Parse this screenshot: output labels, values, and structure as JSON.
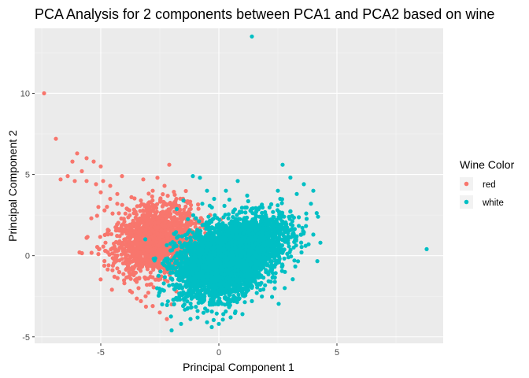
{
  "chart_data": {
    "type": "scatter",
    "title": "PCA Analysis for 2 components between PCA1 and PCA2 based on wine",
    "xlabel": "Principal Component 1",
    "ylabel": "Principal Component 2",
    "xlim": [
      -7.8,
      9.5
    ],
    "ylim": [
      -5.4,
      14.0
    ],
    "x_ticks": [
      -5,
      0,
      5
    ],
    "y_ticks": [
      -5,
      0,
      5,
      10
    ],
    "x_tick_labels": [
      "-5",
      "0",
      "5"
    ],
    "y_tick_labels": [
      "-5",
      "0",
      "5",
      "10"
    ],
    "grid": true,
    "legend": {
      "title": "Wine Color",
      "placement": "right",
      "entries": [
        "red",
        "white"
      ]
    },
    "colors": {
      "red": "#f8766d",
      "white": "#00bfc4",
      "panel": "#ebebeb"
    },
    "series": [
      {
        "name": "red",
        "color": "#f8766d",
        "points": [
          [
            -7.4,
            10.0
          ],
          [
            -6.9,
            7.2
          ],
          [
            -6.0,
            6.3
          ],
          [
            -5.6,
            6.0
          ],
          [
            -5.3,
            5.8
          ],
          [
            -5.0,
            5.5
          ],
          [
            -6.2,
            5.8
          ],
          [
            -5.8,
            5.2
          ],
          [
            -6.1,
            4.6
          ],
          [
            -6.4,
            4.9
          ],
          [
            -5.2,
            4.4
          ],
          [
            -5.6,
            4.6
          ],
          [
            -4.6,
            4.3
          ],
          [
            -4.9,
            4.6
          ],
          [
            -4.3,
            3.8
          ],
          [
            -4.1,
            4.9
          ],
          [
            -3.7,
            3.6
          ],
          [
            -3.3,
            3.4
          ],
          [
            -3.9,
            2.9
          ],
          [
            -4.5,
            2.6
          ],
          [
            -5.1,
            3.0
          ],
          [
            -5.4,
            2.3
          ],
          [
            -4.0,
            2.1
          ],
          [
            -3.5,
            1.9
          ],
          [
            -4.7,
            1.6
          ],
          [
            -4.2,
            1.2
          ],
          [
            -5.9,
            0.2
          ],
          [
            -5.1,
            0.1
          ],
          [
            -4.4,
            -0.4
          ],
          [
            -3.9,
            -0.8
          ],
          [
            -3.6,
            -1.2
          ],
          [
            -4.0,
            -1.7
          ],
          [
            -3.4,
            -2.0
          ],
          [
            -3.1,
            -2.5
          ],
          [
            -2.8,
            -3.1
          ],
          [
            -3.3,
            -2.8
          ],
          [
            -2.5,
            -3.5
          ],
          [
            -2.2,
            -3.9
          ],
          [
            -2.0,
            -3.0
          ],
          [
            -1.8,
            -2.2
          ],
          [
            -2.1,
            5.6
          ],
          [
            -2.3,
            4.3
          ],
          [
            -2.8,
            4.0
          ],
          [
            -1.8,
            3.5
          ],
          [
            -1.4,
            2.6
          ],
          [
            -1.2,
            1.9
          ],
          [
            -1.0,
            1.4
          ],
          [
            -1.5,
            0.4
          ],
          [
            -1.3,
            -0.6
          ],
          [
            -1.6,
            -1.4
          ],
          [
            -4.8,
            0.8
          ],
          [
            -5.6,
            1.1
          ],
          [
            -4.3,
            3.2
          ],
          [
            -3.2,
            4.7
          ],
          [
            -2.6,
            4.8
          ],
          [
            -4.6,
            3.5
          ],
          [
            -3.8,
            0.5
          ],
          [
            -4.1,
            -0.2
          ],
          [
            -6.7,
            4.7
          ],
          [
            -5.0,
            3.9
          ]
        ],
        "clusters": [
          {
            "cx": -2.6,
            "cy": 0.8,
            "sx": 0.85,
            "sy": 0.95,
            "n": 1400
          },
          {
            "cx": -2.9,
            "cy": 2.0,
            "sx": 0.75,
            "sy": 0.8,
            "n": 250
          }
        ]
      },
      {
        "name": "white",
        "color": "#00bfc4",
        "points": [
          [
            1.4,
            13.5
          ],
          [
            8.8,
            0.4
          ],
          [
            2.7,
            5.6
          ],
          [
            2.5,
            4.0
          ],
          [
            3.6,
            4.4
          ],
          [
            4.0,
            4.0
          ],
          [
            3.9,
            3.2
          ],
          [
            4.2,
            2.4
          ],
          [
            3.7,
            2.6
          ],
          [
            2.6,
            3.5
          ],
          [
            3.3,
            3.8
          ],
          [
            4.0,
            1.3
          ],
          [
            4.3,
            0.8
          ],
          [
            3.8,
            0.7
          ],
          [
            3.5,
            0.2
          ],
          [
            3.2,
            -0.3
          ],
          [
            2.8,
            -1.0
          ],
          [
            -1.1,
            4.9
          ],
          [
            -0.8,
            4.8
          ],
          [
            -0.5,
            4.0
          ],
          [
            -0.2,
            3.5
          ],
          [
            0.3,
            4.0
          ],
          [
            0.8,
            4.6
          ],
          [
            1.2,
            3.7
          ],
          [
            -0.7,
            3.2
          ],
          [
            -1.5,
            3.4
          ],
          [
            -2.4,
            -3.0
          ],
          [
            -2.0,
            -4.6
          ],
          [
            -1.6,
            -4.2
          ],
          [
            -1.2,
            -3.9
          ],
          [
            -0.9,
            -3.4
          ],
          [
            -0.5,
            -4.1
          ],
          [
            0.0,
            -4.2
          ],
          [
            0.5,
            -3.8
          ],
          [
            1.0,
            -3.6
          ],
          [
            1.4,
            -2.8
          ],
          [
            -1.8,
            -1.2
          ],
          [
            -2.3,
            -0.3
          ],
          [
            -2.4,
            -2.1
          ],
          [
            -1.9,
            -3.0
          ],
          [
            -0.3,
            -4.4
          ],
          [
            2.2,
            -1.6
          ]
        ],
        "clusters": [
          {
            "cx": 0.1,
            "cy": -0.4,
            "sx": 0.95,
            "sy": 1.05,
            "n": 3300
          },
          {
            "cx": 1.5,
            "cy": 1.0,
            "sx": 0.8,
            "sy": 0.8,
            "n": 1100
          }
        ]
      }
    ]
  }
}
